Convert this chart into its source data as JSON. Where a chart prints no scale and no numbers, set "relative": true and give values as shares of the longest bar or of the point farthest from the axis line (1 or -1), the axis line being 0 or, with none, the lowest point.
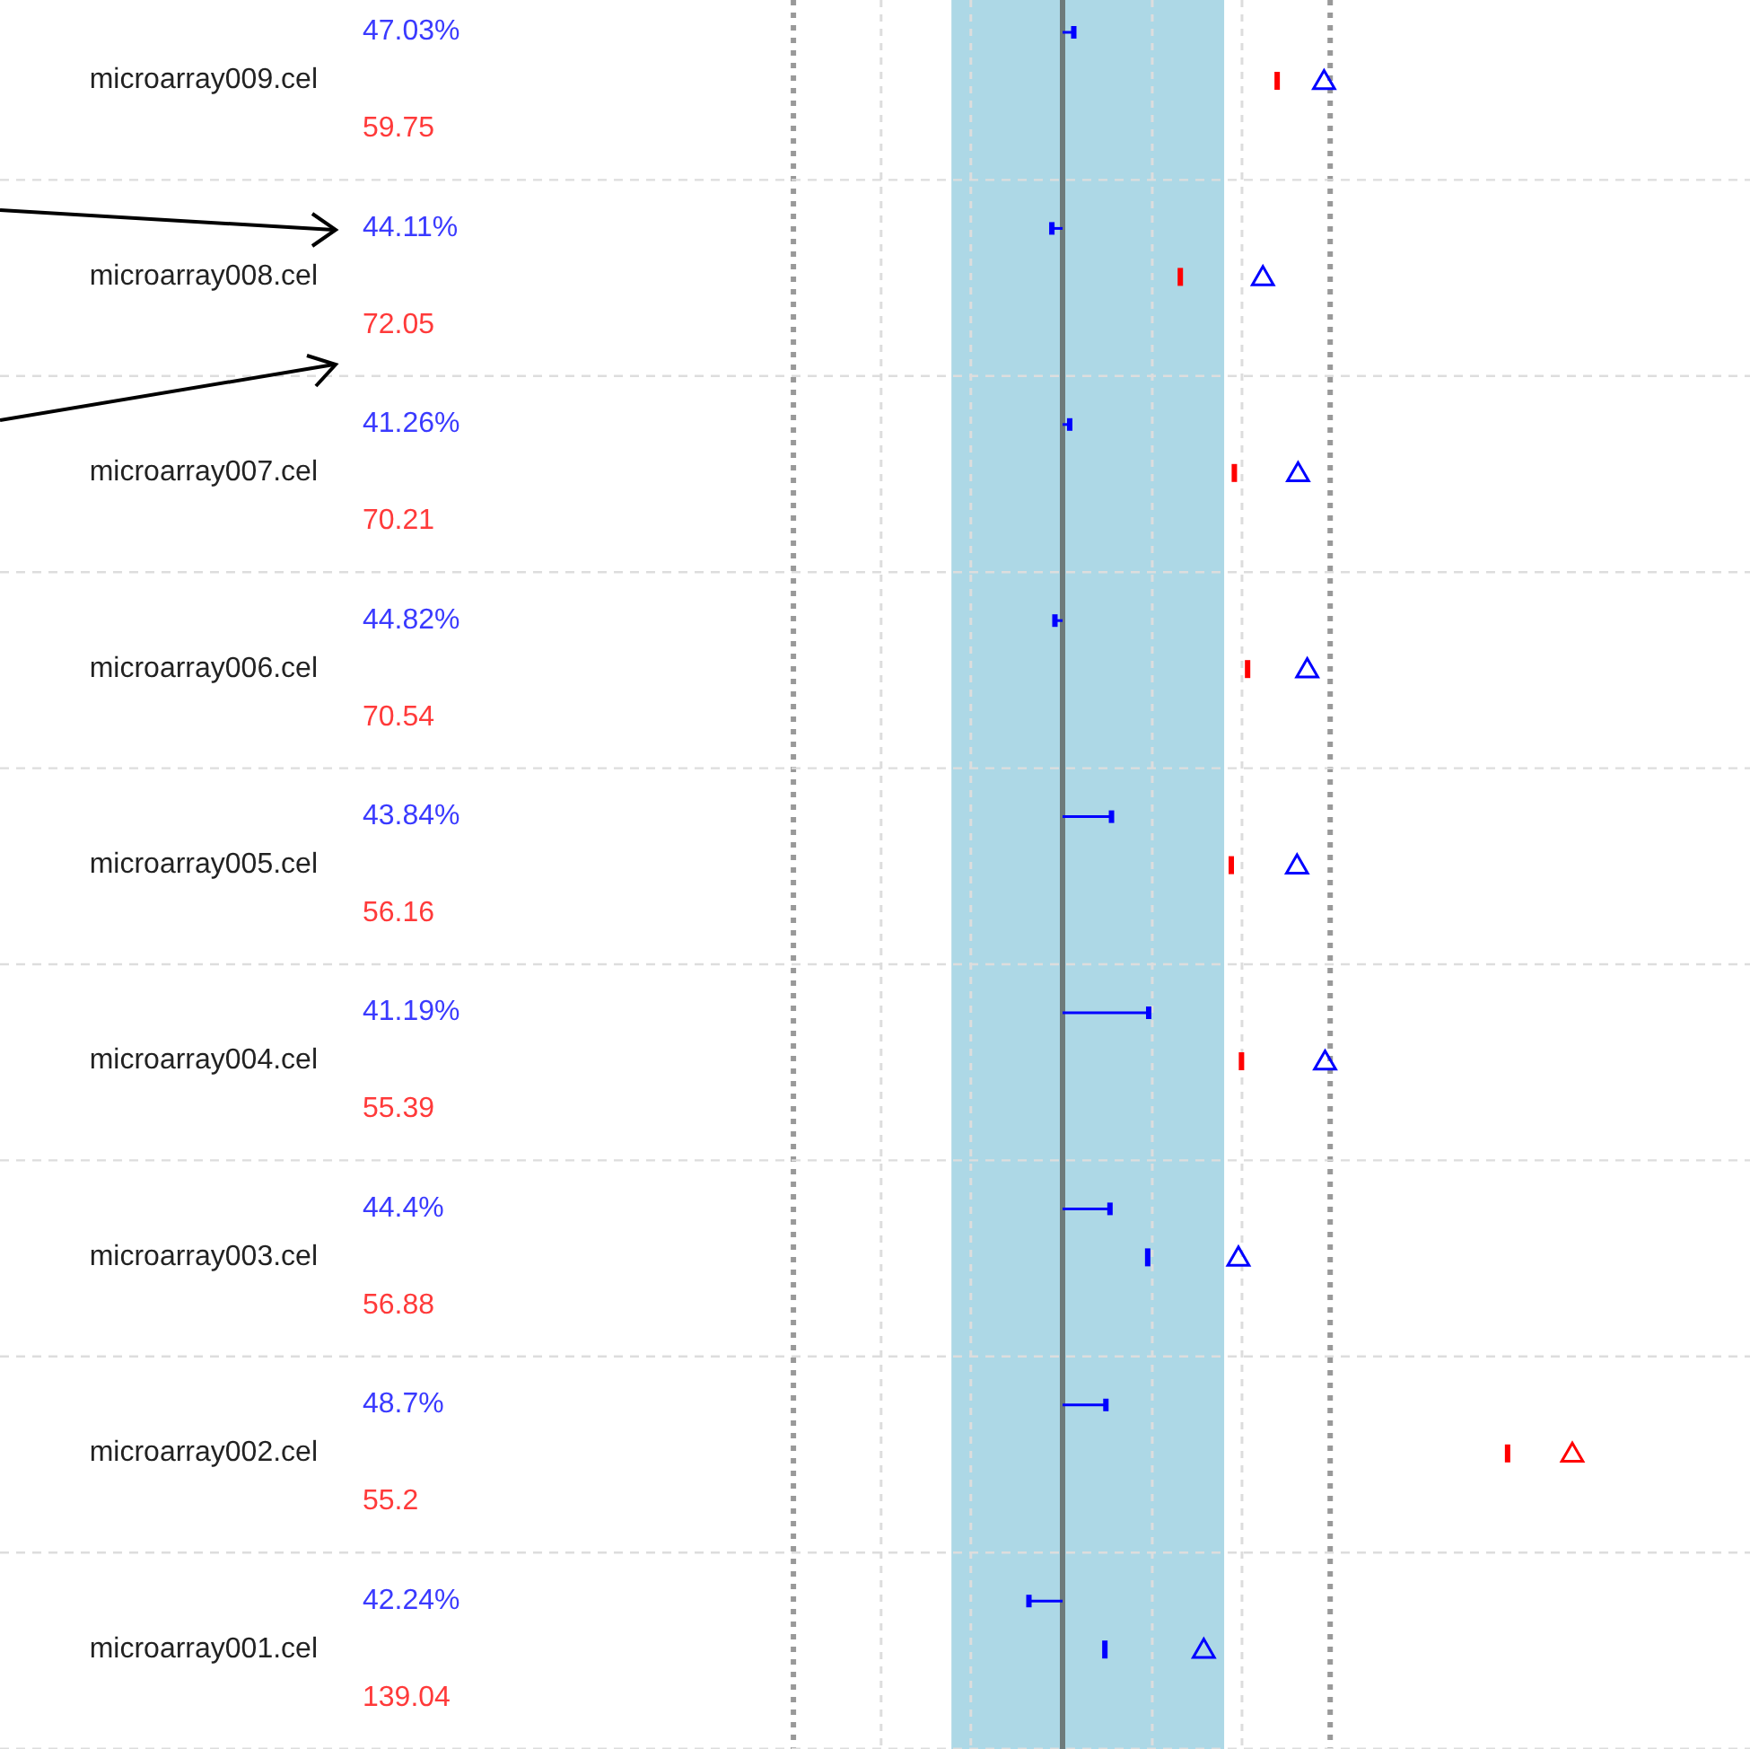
{
  "chart_data": {
    "type": "scatter",
    "orientation": "horizontal",
    "relative": true,
    "tick_labels": "y",
    "grid": "y",
    "categories": [
      "microarray009.cel",
      "microarray008.cel",
      "microarray007.cel",
      "microarray006.cel",
      "microarray005.cel",
      "microarray004.cel",
      "microarray003.cel",
      "microarray002.cel",
      "microarray001.cel"
    ],
    "series": [
      {
        "type": "lollipop",
        "color": "#0000ff",
        "values": [
          0.022,
          -0.021,
          0.014,
          -0.015,
          0.096,
          0.169,
          0.093,
          0.085,
          -0.066
        ]
      },
      {
        "colors": [
          "#ff0000",
          "#ff0000",
          "#ff0000",
          "#ff0000",
          "#ff0000",
          "#ff0000",
          "#0000ff",
          "#ff0000",
          "#0000ff"
        ],
        "values": [
          0.421,
          0.231,
          0.337,
          0.363,
          0.331,
          0.351,
          0.167,
          0.873,
          0.083
        ]
      },
      {
        "marker": "triangle",
        "colors": [
          "#0000ff",
          "#0000ff",
          "#0000ff",
          "#0000ff",
          "#0000ff",
          "#0000ff",
          "#0000ff",
          "#ff0000",
          "#0000ff"
        ],
        "values": [
          0.513,
          0.393,
          0.462,
          0.48,
          0.46,
          0.515,
          0.345,
          1,
          0.277
        ]
      }
    ],
    "bands": [
      {
        "axis": "x",
        "from": -0.218,
        "to": 0.317,
        "color": "#add8e6"
      }
    ],
    "ref_lines": [
      {
        "axis": "x",
        "value": -0.528,
        "color": "#999999",
        "line_style": "dotted"
      },
      {
        "axis": "x",
        "value": 0.525,
        "color": "#999999",
        "line_style": "dotted"
      },
      {
        "axis": "x",
        "value": -0.356,
        "color": "#dddddd",
        "line_style": "dashed"
      },
      {
        "axis": "x",
        "value": -0.18,
        "color": "#dddddd",
        "line_style": "dashed"
      },
      {
        "axis": "x",
        "value": 0.176,
        "color": "#dddddd",
        "line_style": "dashed"
      },
      {
        "axis": "x",
        "value": 0.352,
        "color": "#dddddd",
        "line_style": "dashed"
      }
    ],
    "annotations": [
      "47.03%",
      "59.75",
      "44.11%",
      "72.05",
      "41.26%",
      "70.21",
      "44.82%",
      "70.54",
      "43.84%",
      "56.16",
      "41.19%",
      "55.39",
      "44.4%",
      "56.88",
      "48.7%",
      "55.2",
      "42.24%",
      "139.04"
    ]
  }
}
